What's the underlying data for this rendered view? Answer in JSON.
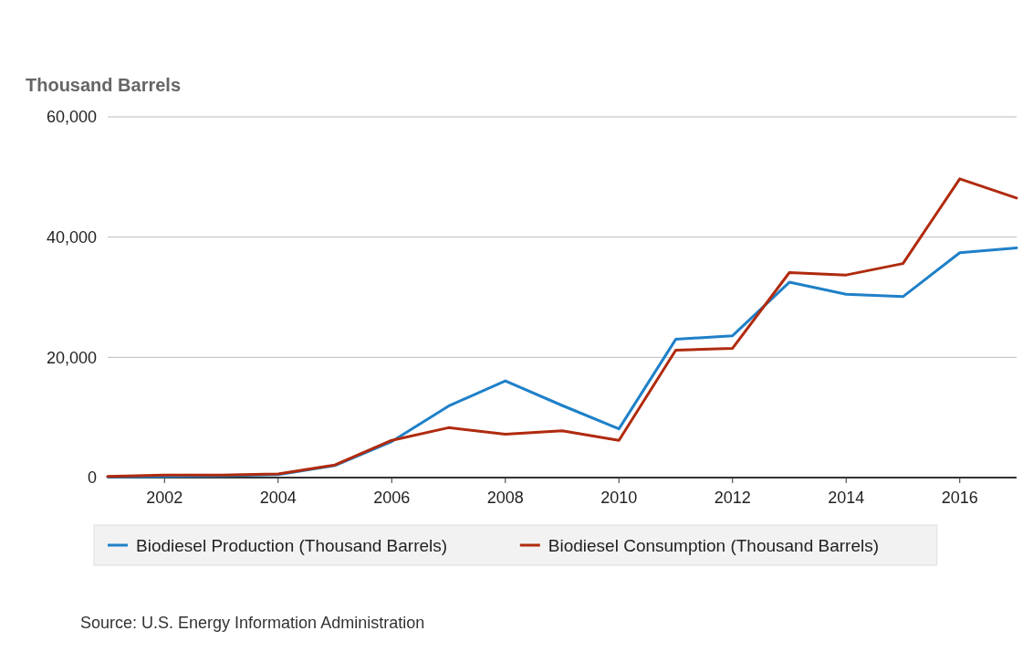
{
  "chart_data": {
    "type": "line",
    "ylabel": "Thousand Barrels",
    "xlim": [
      2001,
      2017
    ],
    "xticks": [
      2002,
      2004,
      2006,
      2008,
      2010,
      2012,
      2014,
      2016
    ],
    "ylim": [
      0,
      60000
    ],
    "yticks": [
      {
        "value": 0,
        "label": "0"
      },
      {
        "value": 20000,
        "label": "20,000"
      },
      {
        "value": 40000,
        "label": "40,000"
      },
      {
        "value": 60000,
        "label": "60,000"
      }
    ],
    "x": [
      2001,
      2002,
      2003,
      2004,
      2005,
      2006,
      2007,
      2008,
      2009,
      2010,
      2011,
      2012,
      2013,
      2014,
      2015,
      2016,
      2017
    ],
    "series": [
      {
        "name": "Biodiesel Production (Thousand Barrels)",
        "color": "#1f80c8",
        "values": [
          100,
          200,
          300,
          500,
          2000,
          6000,
          11900,
          16100,
          12000,
          8100,
          23000,
          23600,
          32500,
          30500,
          30100,
          37400,
          38200
        ]
      },
      {
        "name": "Biodiesel Consumption (Thousand Barrels)",
        "color": "#b02a0e",
        "values": [
          200,
          400,
          400,
          600,
          2100,
          6200,
          8300,
          7200,
          7800,
          6200,
          21200,
          21500,
          34100,
          33700,
          35600,
          49700,
          46500
        ]
      }
    ],
    "grid": "y",
    "legend": "bottom",
    "marker": "none",
    "line_style": "solid",
    "annotations": [
      "Source: U.S. Energy Information Administration"
    ]
  }
}
